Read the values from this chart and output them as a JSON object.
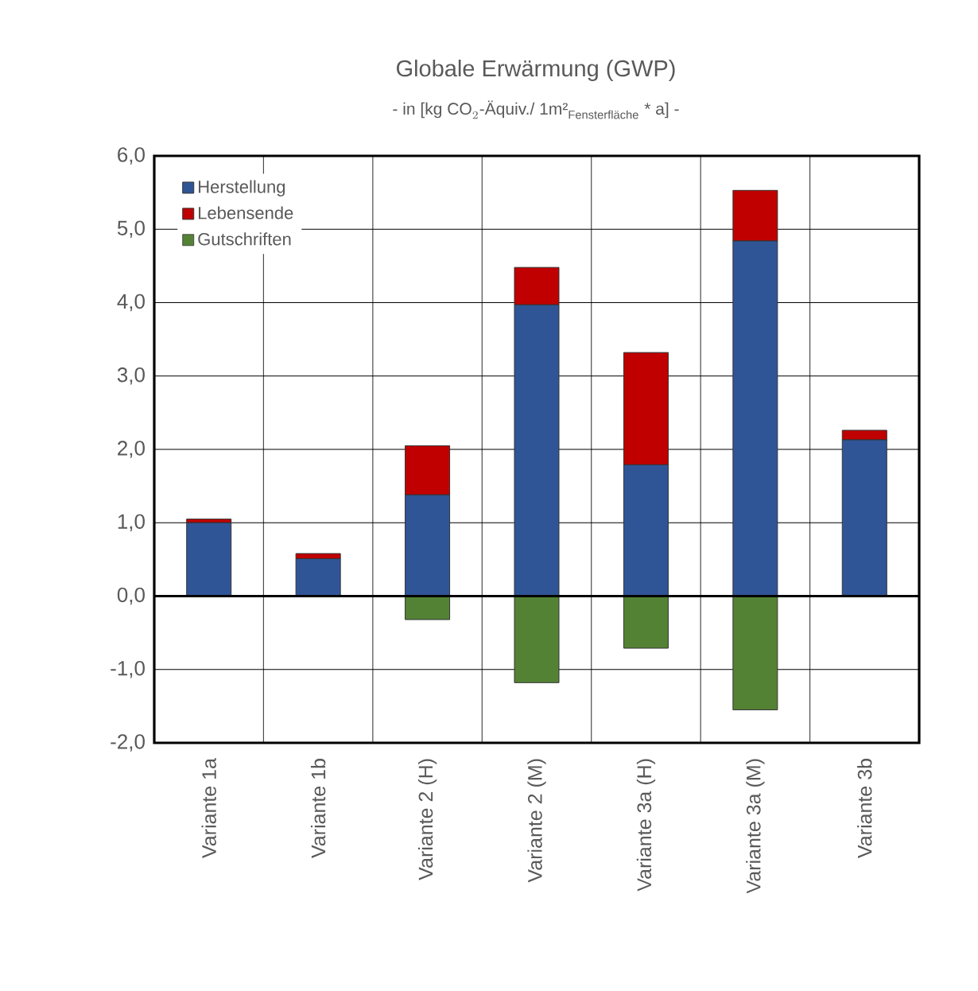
{
  "chart_data": {
    "type": "bar",
    "title": "Globale Erwärmung (GWP)",
    "subtitle": "\\text{- in [kg CO}_{2}\\text{-Äquiv./ 1m²}_{\\text{Fensterfläche}}\\text{ * a] -}",
    "categories": [
      "Variante 1a",
      "Variante 1b",
      "Variante 2 (H)",
      "Variante 2 (M)",
      "Variante 3a (H)",
      "Variante 3a (M)",
      "Variante 3b"
    ],
    "stacked": true,
    "series": [
      {
        "name": "Herstellung",
        "color": "#2f5597",
        "values": [
          1.0,
          0.51,
          1.38,
          3.97,
          1.79,
          4.84,
          2.13
        ]
      },
      {
        "name": "Lebensende",
        "color": "#c00000",
        "values": [
          0.05,
          0.07,
          0.67,
          0.51,
          1.53,
          0.69,
          0.13
        ]
      },
      {
        "name": "Gutschriften",
        "color": "#548235",
        "values": [
          0,
          0,
          -0.32,
          -1.18,
          -0.71,
          -1.55,
          null
        ]
      }
    ],
    "ylim": [
      -2,
      6
    ],
    "yticks": [
      {
        "value": -2,
        "label": "-2,0"
      },
      {
        "value": -1,
        "label": "-1,0"
      },
      {
        "value": 0,
        "label": "0,0"
      },
      {
        "value": 1,
        "label": "1,0"
      },
      {
        "value": 2,
        "label": "2,0"
      },
      {
        "value": 3,
        "label": "3,0"
      },
      {
        "value": 4,
        "label": "4,0"
      },
      {
        "value": 5,
        "label": "5,0"
      },
      {
        "value": 6,
        "label": "6,0"
      }
    ],
    "grid": true,
    "legend": "top left"
  }
}
